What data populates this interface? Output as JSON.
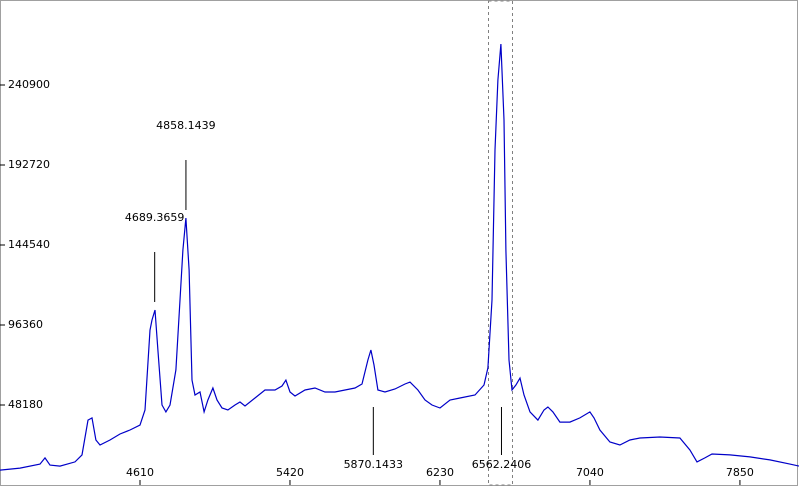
{
  "chart_data": {
    "type": "line",
    "x": [
      3854,
      3962,
      4070,
      4097,
      4124,
      4178,
      4259,
      4297,
      4329,
      4351,
      4372,
      4394,
      4448,
      4502,
      4556,
      4610,
      4637,
      4664,
      4675,
      4691,
      4707,
      4729,
      4750,
      4772,
      4804,
      4826,
      4842,
      4858,
      4875,
      4891,
      4907,
      4934,
      4956,
      4977,
      5004,
      5026,
      5053,
      5085,
      5123,
      5150,
      5177,
      5231,
      5285,
      5339,
      5377,
      5398,
      5420,
      5447,
      5501,
      5555,
      5609,
      5663,
      5717,
      5771,
      5809,
      5841,
      5857,
      5874,
      5895,
      5933,
      5987,
      6041,
      6068,
      6111,
      6149,
      6187,
      6230,
      6284,
      6338,
      6419,
      6468,
      6489,
      6511,
      6527,
      6543,
      6559,
      6576,
      6586,
      6603,
      6619,
      6640,
      6662,
      6684,
      6716,
      6759,
      6792,
      6813,
      6840,
      6878,
      6932,
      6986,
      7040,
      7062,
      7094,
      7148,
      7202,
      7256,
      7310,
      7418,
      7526,
      7580,
      7618,
      7661,
      7699,
      7796,
      7904,
      8012,
      8120,
      8169
    ],
    "series": [
      {
        "color": "#0000c8",
        "values": [
          9000,
          10200,
          12600,
          16300,
          12000,
          11400,
          13900,
          18100,
          39100,
          40400,
          27100,
          24100,
          27100,
          30700,
          33100,
          36100,
          45200,
          93300,
          99400,
          105400,
          81300,
          48200,
          44000,
          48200,
          69300,
          111400,
          141500,
          160800,
          129500,
          63200,
          54200,
          56000,
          44000,
          51200,
          58400,
          51200,
          46400,
          45200,
          48200,
          50000,
          47600,
          52400,
          57200,
          57200,
          59600,
          63200,
          56000,
          53600,
          57200,
          58400,
          56000,
          56000,
          57200,
          58400,
          60800,
          75300,
          81300,
          72300,
          57200,
          56000,
          57800,
          60800,
          62000,
          57200,
          51200,
          48200,
          46400,
          51200,
          52400,
          54200,
          60200,
          70500,
          111400,
          201800,
          243900,
          265600,
          219800,
          141500,
          75300,
          57200,
          60200,
          64400,
          54200,
          44000,
          39100,
          45200,
          47000,
          44000,
          37900,
          37900,
          40400,
          44000,
          40400,
          33100,
          25900,
          24100,
          27100,
          28300,
          28900,
          28300,
          21100,
          13900,
          16300,
          18700,
          18100,
          16900,
          15100,
          12600,
          11400
        ]
      }
    ],
    "xlim": [
      3854,
      8169
    ],
    "ylim": [
      0,
      292100
    ],
    "xticks": [
      4610,
      5420,
      6230,
      7040,
      7850
    ],
    "yticks": [
      48180,
      96360,
      144540,
      192720,
      240900
    ],
    "annotations": [
      {
        "x": 4689.3659,
        "position": "above"
      },
      {
        "x": 4858.1439,
        "position": "above"
      },
      {
        "x": 5870.1433,
        "position": "below"
      },
      {
        "x": 6562.2406,
        "position": "below"
      }
    ],
    "grid": false
  }
}
